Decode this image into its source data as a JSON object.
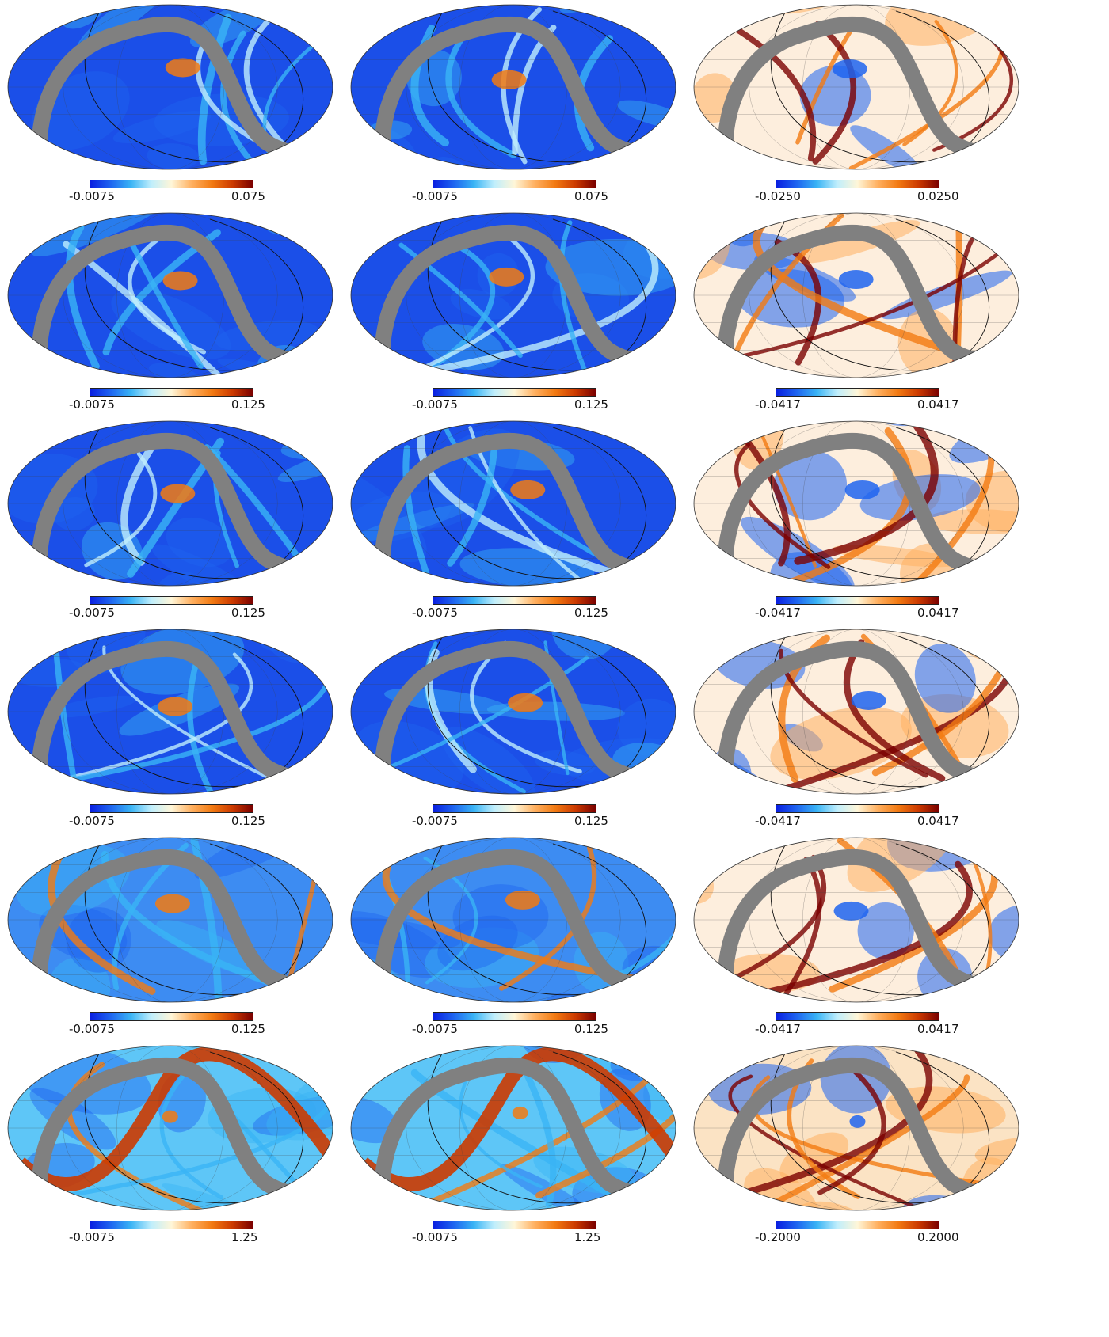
{
  "figure": {
    "rows": 6,
    "columns": 3,
    "projection": "mollweide",
    "masked_band_color": "#808080",
    "colormap": [
      "#0a1fe0",
      "#1e64f0",
      "#3ab4f5",
      "#bfeefc",
      "#fff6d8",
      "#ffb060",
      "#f27a12",
      "#cc3a00",
      "#7a0000"
    ]
  },
  "chart_data": [
    {
      "type": "heatmap",
      "row": 1,
      "col": 1,
      "colorbar": {
        "min_label": "-0.0075",
        "max_label": "0.075"
      },
      "range": [
        -0.0075,
        0.075
      ]
    },
    {
      "type": "heatmap",
      "row": 1,
      "col": 2,
      "colorbar": {
        "min_label": "-0.0075",
        "max_label": "0.075"
      },
      "range": [
        -0.0075,
        0.075
      ]
    },
    {
      "type": "heatmap",
      "row": 1,
      "col": 3,
      "colorbar": {
        "min_label": "-0.0250",
        "max_label": "0.0250"
      },
      "range": [
        -0.025,
        0.025
      ]
    },
    {
      "type": "heatmap",
      "row": 2,
      "col": 1,
      "colorbar": {
        "min_label": "-0.0075",
        "max_label": "0.125"
      },
      "range": [
        -0.0075,
        0.125
      ]
    },
    {
      "type": "heatmap",
      "row": 2,
      "col": 2,
      "colorbar": {
        "min_label": "-0.0075",
        "max_label": "0.125"
      },
      "range": [
        -0.0075,
        0.125
      ]
    },
    {
      "type": "heatmap",
      "row": 2,
      "col": 3,
      "colorbar": {
        "min_label": "-0.0417",
        "max_label": "0.0417"
      },
      "range": [
        -0.0417,
        0.0417
      ]
    },
    {
      "type": "heatmap",
      "row": 3,
      "col": 1,
      "colorbar": {
        "min_label": "-0.0075",
        "max_label": "0.125"
      },
      "range": [
        -0.0075,
        0.125
      ]
    },
    {
      "type": "heatmap",
      "row": 3,
      "col": 2,
      "colorbar": {
        "min_label": "-0.0075",
        "max_label": "0.125"
      },
      "range": [
        -0.0075,
        0.125
      ]
    },
    {
      "type": "heatmap",
      "row": 3,
      "col": 3,
      "colorbar": {
        "min_label": "-0.0417",
        "max_label": "0.0417"
      },
      "range": [
        -0.0417,
        0.0417
      ]
    },
    {
      "type": "heatmap",
      "row": 4,
      "col": 1,
      "colorbar": {
        "min_label": "-0.0075",
        "max_label": "0.125"
      },
      "range": [
        -0.0075,
        0.125
      ]
    },
    {
      "type": "heatmap",
      "row": 4,
      "col": 2,
      "colorbar": {
        "min_label": "-0.0075",
        "max_label": "0.125"
      },
      "range": [
        -0.0075,
        0.125
      ]
    },
    {
      "type": "heatmap",
      "row": 4,
      "col": 3,
      "colorbar": {
        "min_label": "-0.0417",
        "max_label": "0.0417"
      },
      "range": [
        -0.0417,
        0.0417
      ]
    },
    {
      "type": "heatmap",
      "row": 5,
      "col": 1,
      "colorbar": {
        "min_label": "-0.0075",
        "max_label": "0.125"
      },
      "range": [
        -0.0075,
        0.125
      ]
    },
    {
      "type": "heatmap",
      "row": 5,
      "col": 2,
      "colorbar": {
        "min_label": "-0.0075",
        "max_label": "0.125"
      },
      "range": [
        -0.0075,
        0.125
      ]
    },
    {
      "type": "heatmap",
      "row": 5,
      "col": 3,
      "colorbar": {
        "min_label": "-0.0417",
        "max_label": "0.0417"
      },
      "range": [
        -0.0417,
        0.0417
      ]
    },
    {
      "type": "heatmap",
      "row": 6,
      "col": 1,
      "colorbar": {
        "min_label": "-0.0075",
        "max_label": "1.25"
      },
      "range": [
        -0.0075,
        1.25
      ]
    },
    {
      "type": "heatmap",
      "row": 6,
      "col": 2,
      "colorbar": {
        "min_label": "-0.0075",
        "max_label": "1.25"
      },
      "range": [
        -0.0075,
        1.25
      ]
    },
    {
      "type": "heatmap",
      "row": 6,
      "col": 3,
      "colorbar": {
        "min_label": "-0.2000",
        "max_label": "0.2000"
      },
      "range": [
        -0.2,
        0.2
      ]
    }
  ]
}
